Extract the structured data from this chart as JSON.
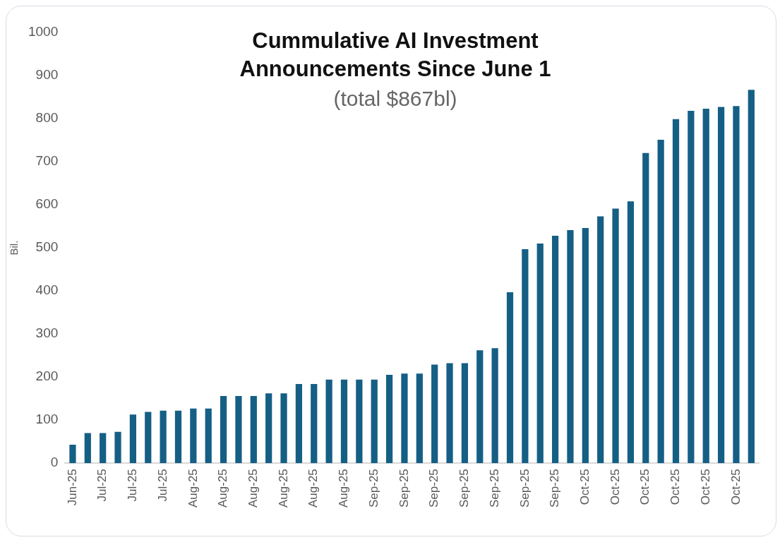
{
  "chart_data": {
    "type": "bar",
    "title": "Cummulative AI Investment Announcements Since June 1",
    "subtitle": "(total $867bl)",
    "ylabel": "Bil.",
    "categories": [
      "Jun-25",
      null,
      "Jul-25",
      null,
      "Jul-25",
      null,
      "Jul-25",
      null,
      "Aug-25",
      null,
      "Aug-25",
      null,
      "Aug-25",
      null,
      "Aug-25",
      null,
      "Aug-25",
      null,
      "Aug-25",
      null,
      "Sep-25",
      null,
      "Sep-25",
      null,
      "Sep-25",
      null,
      "Sep-25",
      null,
      "Sep-25",
      null,
      "Sep-25",
      null,
      "Sep-25",
      null,
      "Oct-25",
      null,
      "Oct-25",
      null,
      "Oct-25",
      null,
      "Oct-25",
      null,
      "Oct-25",
      null,
      "Oct-25",
      null
    ],
    "values": [
      43,
      70,
      70,
      73,
      113,
      119,
      122,
      122,
      127,
      127,
      156,
      156,
      156,
      162,
      162,
      184,
      184,
      194,
      194,
      194,
      194,
      205,
      208,
      208,
      229,
      232,
      232,
      262,
      267,
      397,
      497,
      510,
      528,
      541,
      546,
      573,
      591,
      608,
      720,
      751,
      799,
      818,
      823,
      827,
      829,
      867
    ],
    "color": "#155f85",
    "ylim": [
      0,
      1000
    ],
    "yticks": [
      0,
      100,
      200,
      300,
      400,
      500,
      600,
      700,
      800,
      900,
      1000
    ],
    "grid": false,
    "legend": false
  }
}
